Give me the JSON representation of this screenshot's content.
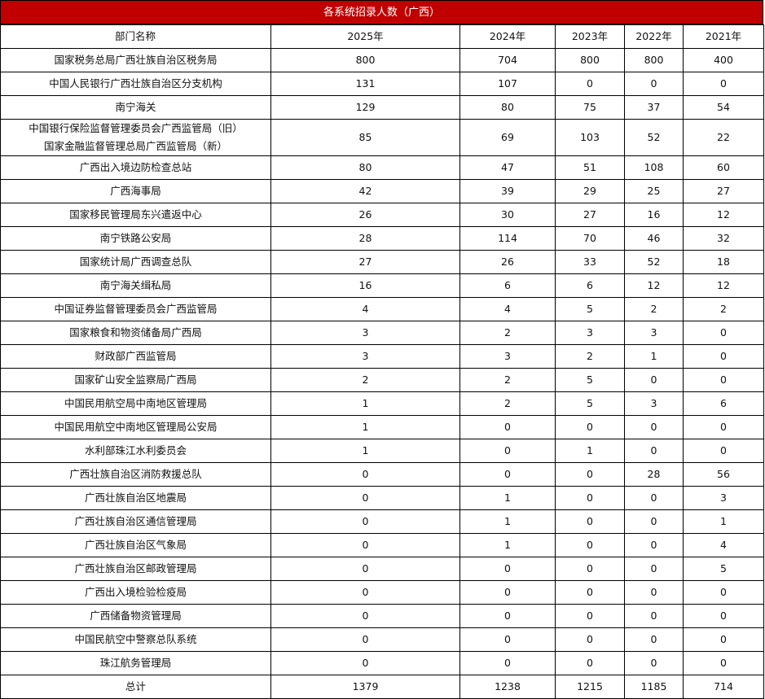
{
  "title": "各系统招录人数（广西）",
  "columns": [
    "部门名称",
    "2025年",
    "2024年",
    "2023年",
    "2022年",
    "2021年"
  ],
  "rows": [
    {
      "name": "国家税务总局广西壮族自治区税务局",
      "values": [
        "800",
        "704",
        "800",
        "800",
        "400"
      ]
    },
    {
      "name": "中国人民银行广西壮族自治区分支机构",
      "values": [
        "131",
        "107",
        "0",
        "0",
        "0"
      ]
    },
    {
      "name": "南宁海关",
      "values": [
        "129",
        "80",
        "75",
        "37",
        "54"
      ]
    },
    {
      "name": "中国银行保险监督管理委员会广西监管局（旧）",
      "name2": "国家金融监督管理总局广西监管局（新）",
      "values": [
        "85",
        "69",
        "103",
        "52",
        "22"
      ]
    },
    {
      "name": "广西出入境边防检查总站",
      "values": [
        "80",
        "47",
        "51",
        "108",
        "60"
      ]
    },
    {
      "name": "广西海事局",
      "values": [
        "42",
        "39",
        "29",
        "25",
        "27"
      ]
    },
    {
      "name": "国家移民管理局东兴遣返中心",
      "values": [
        "26",
        "30",
        "27",
        "16",
        "12"
      ]
    },
    {
      "name": "南宁铁路公安局",
      "values": [
        "28",
        "114",
        "70",
        "46",
        "32"
      ]
    },
    {
      "name": "国家统计局广西调查总队",
      "values": [
        "27",
        "26",
        "33",
        "52",
        "18"
      ]
    },
    {
      "name": "南宁海关缉私局",
      "values": [
        "16",
        "6",
        "6",
        "12",
        "12"
      ]
    },
    {
      "name": "中国证券监督管理委员会广西监管局",
      "values": [
        "4",
        "4",
        "5",
        "2",
        "2"
      ]
    },
    {
      "name": "国家粮食和物资储备局广西局",
      "values": [
        "3",
        "2",
        "3",
        "3",
        "0"
      ]
    },
    {
      "name": "财政部广西监管局",
      "values": [
        "3",
        "3",
        "2",
        "1",
        "0"
      ]
    },
    {
      "name": "国家矿山安全监察局广西局",
      "values": [
        "2",
        "2",
        "5",
        "0",
        "0"
      ]
    },
    {
      "name": "中国民用航空局中南地区管理局",
      "values": [
        "1",
        "2",
        "5",
        "3",
        "6"
      ]
    },
    {
      "name": "中国民用航空中南地区管理局公安局",
      "values": [
        "1",
        "0",
        "0",
        "0",
        "0"
      ]
    },
    {
      "name": "水利部珠江水利委员会",
      "values": [
        "1",
        "0",
        "1",
        "0",
        "0"
      ]
    },
    {
      "name": "广西壮族自治区消防救援总队",
      "values": [
        "0",
        "0",
        "0",
        "28",
        "56"
      ]
    },
    {
      "name": "广西壮族自治区地震局",
      "values": [
        "0",
        "1",
        "0",
        "0",
        "3"
      ]
    },
    {
      "name": "广西壮族自治区通信管理局",
      "values": [
        "0",
        "1",
        "0",
        "0",
        "1"
      ]
    },
    {
      "name": "广西壮族自治区气象局",
      "values": [
        "0",
        "1",
        "0",
        "0",
        "4"
      ]
    },
    {
      "name": "广西壮族自治区邮政管理局",
      "values": [
        "0",
        "0",
        "0",
        "0",
        "5"
      ]
    },
    {
      "name": "广西出入境检验检疫局",
      "values": [
        "0",
        "0",
        "0",
        "0",
        "0"
      ]
    },
    {
      "name": "广西储备物资管理局",
      "values": [
        "0",
        "0",
        "0",
        "0",
        "0"
      ]
    },
    {
      "name": "中国民航空中警察总队系统",
      "values": [
        "0",
        "0",
        "0",
        "0",
        "0"
      ]
    },
    {
      "name": "珠江航务管理局",
      "values": [
        "0",
        "0",
        "0",
        "0",
        "0"
      ]
    }
  ],
  "total": {
    "name": "总计",
    "values": [
      "1379",
      "1238",
      "1215",
      "1185",
      "714"
    ]
  },
  "colors": {
    "header_bg": "#c00000"
  }
}
